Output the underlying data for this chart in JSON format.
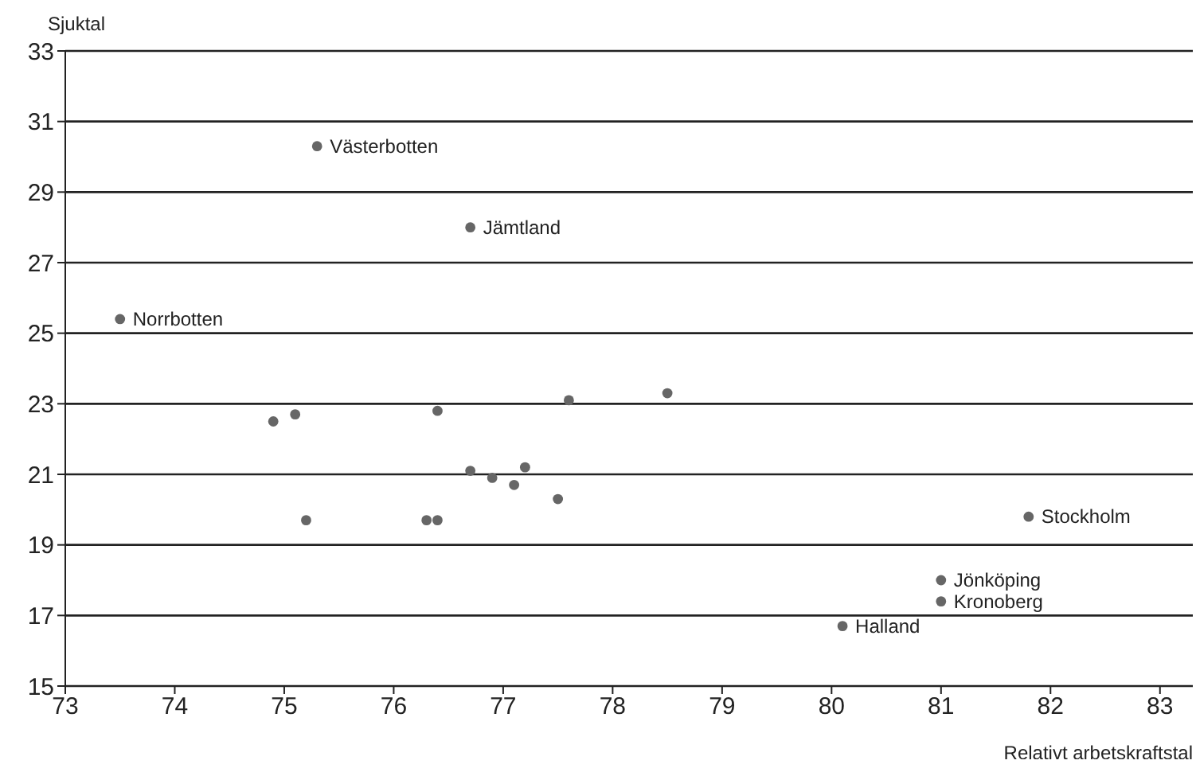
{
  "chart_data": {
    "type": "scatter",
    "xlabel": "Relativt arbetskraftstal",
    "ylabel": "Sjuktal",
    "x": [
      75.3,
      76.7,
      73.5,
      74.9,
      75.1,
      76.4,
      77.6,
      78.5,
      76.7,
      76.9,
      77.2,
      77.1,
      77.5,
      76.3,
      76.4,
      75.2,
      81.8,
      81.0,
      81.0,
      80.1
    ],
    "series": [
      {
        "color": "#666666",
        "values": [
          30.3,
          28.0,
          25.4,
          22.5,
          22.7,
          22.8,
          23.1,
          23.3,
          21.1,
          20.9,
          21.2,
          20.7,
          20.3,
          19.7,
          19.7,
          19.7,
          19.8,
          18.0,
          17.4,
          16.7
        ]
      }
    ],
    "annotations": [
      {
        "text": "Västerbotten",
        "x": 75.3,
        "y": 30.3
      },
      {
        "text": "Jämtland",
        "x": 76.7,
        "y": 28.0
      },
      {
        "text": "Norrbotten",
        "x": 73.5,
        "y": 25.4
      },
      {
        "text": "Stockholm",
        "x": 81.8,
        "y": 19.8
      },
      {
        "text": "Jönköping",
        "x": 81.0,
        "y": 18.0
      },
      {
        "text": "Kronoberg",
        "x": 81.0,
        "y": 17.4
      },
      {
        "text": "Halland",
        "x": 80.1,
        "y": 16.7
      }
    ],
    "xlim": [
      73,
      83.3
    ],
    "xticks": [
      73,
      74,
      75,
      76,
      77,
      78,
      79,
      80,
      81,
      82,
      83
    ],
    "ylim": [
      15,
      33
    ],
    "yticks": [
      15,
      17,
      19,
      21,
      23,
      25,
      27,
      29,
      31,
      33
    ],
    "grid": "y",
    "marker": "circle",
    "legend": false
  }
}
